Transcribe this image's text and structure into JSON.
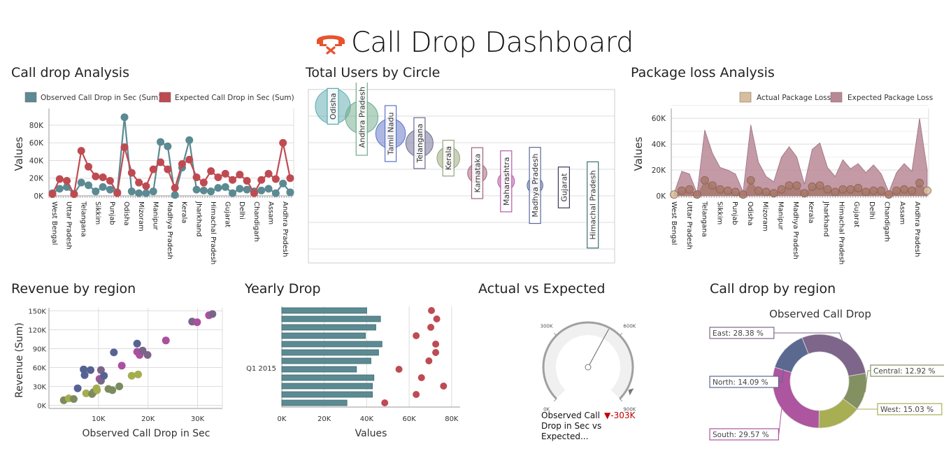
{
  "header": {
    "title": "Call Drop Dashboard",
    "icon": "phone-hangup-icon",
    "icon_color": "#e8532e"
  },
  "panels": {
    "call_drop_analysis": "Call drop Analysis",
    "total_users": "Total Users by Circle",
    "package_loss": "Package loss Analysis",
    "revenue": "Revenue by region",
    "yearly_drop": "Yearly Drop",
    "actual_vs_expected": "Actual vs Expected",
    "call_drop_region": "Call drop by region"
  },
  "gauge": {
    "caption": "Observed Call Drop in Sec vs Expected...",
    "delta": "-303K",
    "delta_icon": "triangle-down-icon",
    "ticks": [
      "0K",
      "300K",
      "600K",
      "900K"
    ],
    "min": 0,
    "max": 900000,
    "value": 545000,
    "target": 848000
  },
  "chart_data": [
    {
      "id": "call_drop_analysis",
      "type": "line",
      "title": "Call drop Analysis",
      "ylabel": "Values",
      "ylim": [
        0,
        95000
      ],
      "yticks": [
        "0K",
        "20K",
        "40K",
        "60K",
        "80K"
      ],
      "legend": "top-right",
      "x_labels": [
        "West Bengal",
        "Uttar Pradesh",
        "Telangana",
        "Sikkim",
        "Punjab",
        "Odisha",
        "Mizoram",
        "Manipur",
        "Madhya Pradesh",
        "Kerala",
        "Jharkhand",
        "Himachal Pradesh",
        "Gujarat",
        "Delhi",
        "Chandigarh",
        "Assam",
        "Andhra Pradesh"
      ],
      "series": [
        {
          "name": "Observed Call Drop in Sec (Sum)",
          "color": "#5b8a92",
          "values": [
            3000,
            8000,
            10000,
            2000,
            15000,
            12000,
            5000,
            10000,
            7000,
            4000,
            89000,
            5000,
            3000,
            3000,
            5000,
            61000,
            56000,
            1000,
            32000,
            63000,
            7000,
            6000,
            5000,
            9000,
            10000,
            3000,
            8000,
            7000,
            5000,
            6000,
            8000,
            3000,
            14000,
            4000
          ]
        },
        {
          "name": "Expected Call Drop in Sec (Sum)",
          "color": "#bf4b52",
          "values": [
            2000,
            19000,
            17000,
            2000,
            51000,
            33000,
            22000,
            21000,
            17000,
            3000,
            55000,
            26000,
            15000,
            11000,
            30000,
            38000,
            30000,
            9000,
            36000,
            41000,
            21000,
            15000,
            28000,
            21000,
            25000,
            18000,
            24000,
            17000,
            3000,
            18000,
            25000,
            19000,
            60000,
            20000
          ]
        }
      ]
    },
    {
      "id": "total_users",
      "type": "scatter",
      "subtype": "bubble",
      "title": "Total Users by Circle",
      "points": [
        {
          "label": "Odisha",
          "rank": 1,
          "users": 100,
          "size": 1.0,
          "color": "#5aa9ad"
        },
        {
          "label": "Andhra Pradesh",
          "rank": 2,
          "users": 92,
          "size": 0.93,
          "color": "#6ea98a"
        },
        {
          "label": "Tamil Nadu",
          "rank": 3,
          "users": 80,
          "size": 0.85,
          "color": "#5b72c6"
        },
        {
          "label": "Telangana",
          "rank": 4,
          "users": 73,
          "size": 0.78,
          "color": "#6b6a90"
        },
        {
          "label": "Kerala",
          "rank": 5,
          "users": 62,
          "size": 0.65,
          "color": "#93a47a"
        },
        {
          "label": "Karnataka",
          "rank": 6,
          "users": 51,
          "size": 0.55,
          "color": "#a0607a"
        },
        {
          "label": "Maharashtra",
          "rank": 7,
          "users": 45,
          "size": 0.48,
          "color": "#b65aa8"
        },
        {
          "label": "Madhya Pradesh",
          "rank": 8,
          "users": 42,
          "size": 0.45,
          "color": "#5a6898"
        },
        {
          "label": "Gujarat",
          "rank": 9,
          "users": 25,
          "size": 0,
          "color": "#3a3a5a"
        },
        {
          "label": "Himachal Pradesh",
          "rank": 10,
          "users": 12,
          "size": 0,
          "color": "#3f6e72"
        }
      ]
    },
    {
      "id": "package_loss",
      "type": "area",
      "title": "Package loss Analysis",
      "ylabel": "Values",
      "ylim": [
        0,
        65000
      ],
      "yticks": [
        "0K",
        "20K",
        "40K",
        "60K"
      ],
      "legend": "top-right",
      "x_labels": [
        "West Bengal",
        "Uttar Pradesh",
        "Telangana",
        "Sikkim",
        "Punjab",
        "Odisha",
        "Mizoram",
        "Manipur",
        "Madhya Pradesh",
        "Kerala",
        "Jharkhand",
        "Himachal Pradesh",
        "Gujarat",
        "Delhi",
        "Chandigarh",
        "Assam",
        "Andhra Pradesh"
      ],
      "series": [
        {
          "name": "Actual Package Loss",
          "color": "#d6bf9e",
          "values": [
            1000,
            4000,
            5000,
            1000,
            12000,
            8000,
            5000,
            4000,
            3000,
            1000,
            12000,
            4000,
            3000,
            2000,
            5000,
            8000,
            8000,
            2000,
            7000,
            8000,
            5000,
            3000,
            5000,
            5000,
            6000,
            3000,
            4000,
            4000,
            1000,
            4000,
            5000,
            4000,
            10000,
            4000
          ]
        },
        {
          "name": "Expected Package Loss",
          "color": "#b88896",
          "values": [
            2000,
            19000,
            17000,
            2000,
            51000,
            33000,
            22000,
            20000,
            17000,
            3000,
            55000,
            26000,
            15000,
            11000,
            30000,
            38000,
            30000,
            9000,
            36000,
            41000,
            22000,
            15000,
            28000,
            21000,
            25000,
            18000,
            24000,
            17000,
            3000,
            18000,
            25000,
            19000,
            60000,
            20000
          ]
        }
      ]
    },
    {
      "id": "revenue",
      "type": "scatter",
      "title": "Revenue by region",
      "xlabel": "Observed Call Drop in Sec",
      "ylabel": "Revenue (Sum)",
      "xlim": [
        0,
        35000
      ],
      "ylim": [
        -5000,
        155000
      ],
      "xticks": [
        "10K",
        "20K",
        "30K"
      ],
      "yticks": [
        "0K",
        "30K",
        "60K",
        "90K",
        "120K",
        "150K"
      ],
      "points": [
        {
          "x": 3000,
          "y": 8000,
          "color": "#7a8c5e"
        },
        {
          "x": 4000,
          "y": 11000,
          "color": "#a5ad4e"
        },
        {
          "x": 5000,
          "y": 10000,
          "color": "#7a8c5e"
        },
        {
          "x": 5800,
          "y": 27000,
          "color": "#556393"
        },
        {
          "x": 7000,
          "y": 57000,
          "color": "#556393"
        },
        {
          "x": 7200,
          "y": 48000,
          "color": "#556393"
        },
        {
          "x": 7500,
          "y": 19000,
          "color": "#a5ad4e"
        },
        {
          "x": 8400,
          "y": 56000,
          "color": "#556393"
        },
        {
          "x": 8700,
          "y": 18000,
          "color": "#7a8c5e"
        },
        {
          "x": 9000,
          "y": 21000,
          "color": "#7a8c5e"
        },
        {
          "x": 9600,
          "y": 27000,
          "color": "#a5ad4e"
        },
        {
          "x": 9700,
          "y": 24000,
          "color": "#a5ad4e"
        },
        {
          "x": 10200,
          "y": 42000,
          "color": "#ad4f9f"
        },
        {
          "x": 10500,
          "y": 56000,
          "color": "#7a6488"
        },
        {
          "x": 10500,
          "y": 39000,
          "color": "#7a6488"
        },
        {
          "x": 11100,
          "y": 47000,
          "color": "#556393"
        },
        {
          "x": 12000,
          "y": 26000,
          "color": "#7a8c5e"
        },
        {
          "x": 12800,
          "y": 24000,
          "color": "#7a8c5e"
        },
        {
          "x": 13100,
          "y": 84000,
          "color": "#556393"
        },
        {
          "x": 14200,
          "y": 30000,
          "color": "#7a8c5e"
        },
        {
          "x": 14700,
          "y": 63000,
          "color": "#ad4f9f"
        },
        {
          "x": 16700,
          "y": 47000,
          "color": "#a5ad4e"
        },
        {
          "x": 17800,
          "y": 98000,
          "color": "#556393"
        },
        {
          "x": 17800,
          "y": 85000,
          "color": "#ad4f9f"
        },
        {
          "x": 18000,
          "y": 49000,
          "color": "#a5ad4e"
        },
        {
          "x": 18300,
          "y": 80000,
          "color": "#ad4f9f"
        },
        {
          "x": 18900,
          "y": 87000,
          "color": "#7a6488"
        },
        {
          "x": 19900,
          "y": 80000,
          "color": "#7a6488"
        },
        {
          "x": 23600,
          "y": 103000,
          "color": "#ad4f9f"
        },
        {
          "x": 28900,
          "y": 133000,
          "color": "#7a6488"
        },
        {
          "x": 29900,
          "y": 132000,
          "color": "#ad4f9f"
        },
        {
          "x": 32300,
          "y": 143000,
          "color": "#ad4f9f"
        },
        {
          "x": 33000,
          "y": 145000,
          "color": "#7a6488"
        }
      ]
    },
    {
      "id": "yearly_drop",
      "type": "bar",
      "orientation": "horizontal",
      "title": "Yearly Drop",
      "xlabel": "Values",
      "xlim": [
        0,
        84000
      ],
      "xticks": [
        "0K",
        "20K",
        "40K",
        "60K",
        "80K"
      ],
      "category_label": "Q1 2015",
      "series": [
        {
          "name": "Observed",
          "kind": "bar",
          "color": "#5b8a92",
          "values": [
            40000,
            46500,
            44300,
            39400,
            47200,
            45600,
            42000,
            35200,
            43400,
            42700,
            42700,
            30700
          ]
        },
        {
          "name": "Expected",
          "kind": "point",
          "color": "#bf4b52",
          "values": [
            70500,
            73000,
            70200,
            63300,
            72500,
            72500,
            69300,
            55200,
            65800,
            76200,
            63300,
            48500
          ]
        }
      ]
    },
    {
      "id": "call_drop_region",
      "type": "pie",
      "subtype": "donut",
      "title": "Observed Call Drop",
      "slices": [
        {
          "label": "East",
          "value": 28.38,
          "text": "East: 28.38 %",
          "color": "#7d6689"
        },
        {
          "label": "Central",
          "value": 12.92,
          "text": "Central: 12.92 %",
          "color": "#839062"
        },
        {
          "label": "West",
          "value": 15.03,
          "text": "West: 15.03 %",
          "color": "#a8ae52"
        },
        {
          "label": "South",
          "value": 29.57,
          "text": "South: 29.57 %",
          "color": "#ad559e"
        },
        {
          "label": "North",
          "value": 14.09,
          "text": "North: 14.09 %",
          "color": "#5b6991"
        }
      ]
    }
  ]
}
